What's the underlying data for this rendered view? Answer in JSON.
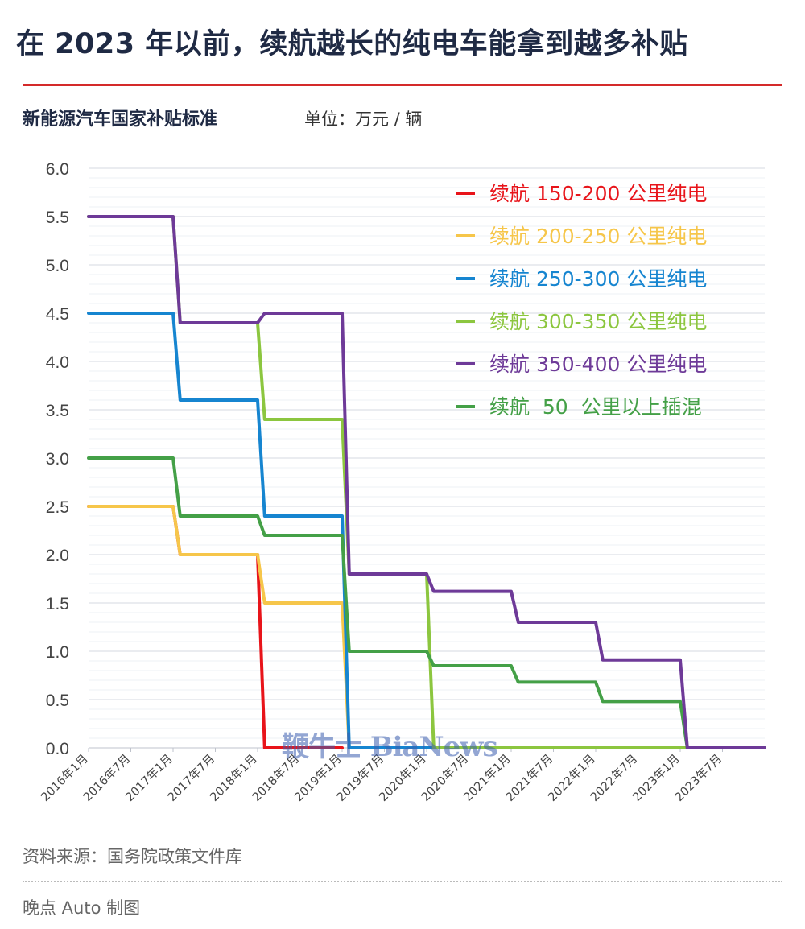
{
  "header": {
    "title": "在 2023 年以前，续航越长的纯电车能拿到越多补贴",
    "subtitle": "新能源汽车国家补贴标准",
    "unit": "单位：万元 / 辆"
  },
  "footer": {
    "source": "资料来源：国务院政策文件库",
    "credit": "晚点 Auto 制图"
  },
  "watermark": "鞭牛士 BiaNews",
  "colors": {
    "accent_rule": "#d42a2a",
    "title": "#1f2a44",
    "grid": "#dcdfe8"
  },
  "chart_data": {
    "type": "line",
    "step": true,
    "y_ticks": [
      "0.0",
      "0.5",
      "1.0",
      "1.5",
      "2.0",
      "2.5",
      "3.0",
      "3.5",
      "4.0",
      "4.5",
      "5.0",
      "5.5",
      "6.0"
    ],
    "ylim": [
      0,
      6
    ],
    "x_ticks": [
      "2016年1月",
      "2016年7月",
      "2017年1月",
      "2017年7月",
      "2018年1月",
      "2018年7月",
      "2019年1月",
      "2019年7月",
      "2020年1月",
      "2020年7月",
      "2021年1月",
      "2021年7月",
      "2022年1月",
      "2022年7月",
      "2023年1月",
      "2023年7月"
    ],
    "xlim": [
      "2016-01",
      "2024-01"
    ],
    "grid": true,
    "legend_position": "top-right",
    "series": [
      {
        "name": "续航 150-200 公里纯电",
        "color": "#e8141a",
        "points": [
          [
            "2016-01",
            2.5
          ],
          [
            "2017-01",
            2.5
          ],
          [
            "2017-02",
            2.0
          ],
          [
            "2018-01",
            2.0
          ],
          [
            "2018-02",
            0
          ],
          [
            "2019-01",
            0
          ]
        ]
      },
      {
        "name": "续航 200-250 公里纯电",
        "color": "#f6c64a",
        "points": [
          [
            "2016-01",
            2.5
          ],
          [
            "2017-01",
            2.5
          ],
          [
            "2017-02",
            2.0
          ],
          [
            "2018-01",
            2.0
          ],
          [
            "2018-02",
            1.5
          ],
          [
            "2019-01",
            1.5
          ],
          [
            "2019-02",
            0
          ],
          [
            "2024-01",
            0
          ]
        ]
      },
      {
        "name": "续航 250-300 公里纯电",
        "color": "#1685d0",
        "points": [
          [
            "2016-01",
            4.5
          ],
          [
            "2017-01",
            4.5
          ],
          [
            "2017-02",
            3.6
          ],
          [
            "2018-01",
            3.6
          ],
          [
            "2018-02",
            2.4
          ],
          [
            "2019-01",
            2.4
          ],
          [
            "2019-02",
            0
          ],
          [
            "2024-01",
            0
          ]
        ]
      },
      {
        "name": "续航 300-350 公里纯电",
        "color": "#8cc63f",
        "points": [
          [
            "2016-01",
            5.5
          ],
          [
            "2017-01",
            5.5
          ],
          [
            "2017-02",
            4.4
          ],
          [
            "2018-01",
            4.4
          ],
          [
            "2018-02",
            3.4
          ],
          [
            "2019-01",
            3.4
          ],
          [
            "2019-02",
            1.8
          ],
          [
            "2020-01",
            1.8
          ],
          [
            "2020-02",
            0
          ],
          [
            "2024-01",
            0
          ]
        ]
      },
      {
        "name": "续航 350-400 公里纯电",
        "color": "#6e3a98",
        "points": [
          [
            "2016-01",
            5.5
          ],
          [
            "2017-01",
            5.5
          ],
          [
            "2017-02",
            4.4
          ],
          [
            "2018-01",
            4.4
          ],
          [
            "2018-02",
            4.5
          ],
          [
            "2019-01",
            4.5
          ],
          [
            "2019-02",
            1.8
          ],
          [
            "2020-01",
            1.8
          ],
          [
            "2020-02",
            1.62
          ],
          [
            "2021-01",
            1.62
          ],
          [
            "2021-02",
            1.3
          ],
          [
            "2022-01",
            1.3
          ],
          [
            "2022-02",
            0.91
          ],
          [
            "2023-01",
            0.91
          ],
          [
            "2023-02",
            0
          ],
          [
            "2024-01",
            0
          ]
        ]
      },
      {
        "name": "续航  50  公里以上插混",
        "color": "#44a047",
        "points": [
          [
            "2016-01",
            3.0
          ],
          [
            "2017-01",
            3.0
          ],
          [
            "2017-02",
            2.4
          ],
          [
            "2018-01",
            2.4
          ],
          [
            "2018-02",
            2.2
          ],
          [
            "2019-01",
            2.2
          ],
          [
            "2019-02",
            1.0
          ],
          [
            "2020-01",
            1.0
          ],
          [
            "2020-02",
            0.85
          ],
          [
            "2021-01",
            0.85
          ],
          [
            "2021-02",
            0.68
          ],
          [
            "2022-01",
            0.68
          ],
          [
            "2022-02",
            0.48
          ],
          [
            "2023-01",
            0.48
          ],
          [
            "2023-02",
            0
          ],
          [
            "2024-01",
            0
          ]
        ]
      }
    ]
  }
}
